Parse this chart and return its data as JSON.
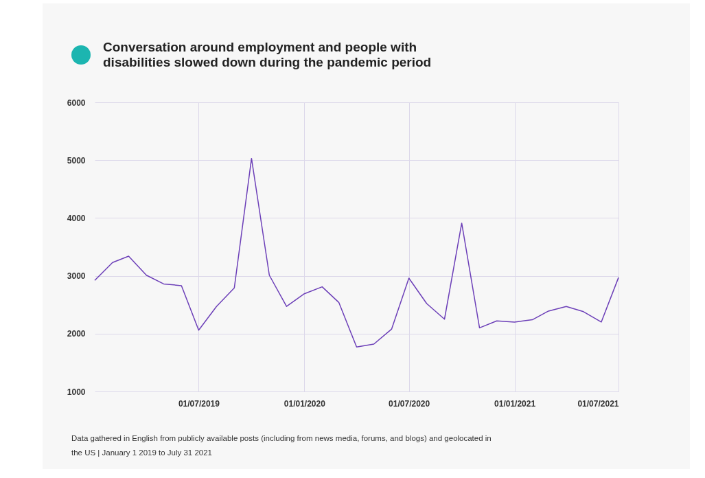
{
  "chart_data": {
    "type": "line",
    "title": "Conversation around employment and people with disabilities slowed down during the pandemic period",
    "x": [
      "2019-01-01",
      "2019-02-01",
      "2019-03-01",
      "2019-04-01",
      "2019-05-01",
      "2019-06-01",
      "2019-07-01",
      "2019-08-01",
      "2019-09-01",
      "2019-10-01",
      "2019-11-01",
      "2019-12-01",
      "2020-01-01",
      "2020-02-01",
      "2020-03-01",
      "2020-04-01",
      "2020-05-01",
      "2020-06-01",
      "2020-07-01",
      "2020-08-01",
      "2020-09-01",
      "2020-10-01",
      "2020-11-01",
      "2020-12-01",
      "2021-01-01",
      "2021-02-01",
      "2021-03-01",
      "2021-04-01",
      "2021-05-01",
      "2021-06-01",
      "2021-07-01"
    ],
    "series": [
      {
        "color": "#6c3fb8",
        "values": [
          2920,
          3230,
          3340,
          3010,
          2860,
          2830,
          2060,
          2470,
          2790,
          5030,
          3010,
          2470,
          2690,
          2810,
          2540,
          1770,
          1820,
          2080,
          2960,
          2520,
          2250,
          3910,
          2100,
          2220,
          2200,
          2240,
          2390,
          2470,
          2380,
          2200,
          2970
        ]
      }
    ],
    "xlim": [
      "2019-01-01",
      "2021-07-01"
    ],
    "xticks": [
      {
        "value": "2019-07-01",
        "label": "01/07/2019"
      },
      {
        "value": "2020-01-01",
        "label": "01/01/2020"
      },
      {
        "value": "2020-07-01",
        "label": "01/07/2020"
      },
      {
        "value": "2021-01-01",
        "label": "01/01/2021"
      },
      {
        "value": "2021-07-01",
        "label": "01/07/2021"
      }
    ],
    "ylim": [
      1000,
      6000
    ],
    "yticks": [
      1000,
      2000,
      3000,
      4000,
      5000,
      6000
    ],
    "grid": true,
    "marker": "none",
    "line_style": "solid",
    "annotations": [
      "Data gathered in English from publicly available posts (including from news media, forums, and blogs) and geolocated in the US | January 1 2019 to July 31 2021"
    ]
  }
}
